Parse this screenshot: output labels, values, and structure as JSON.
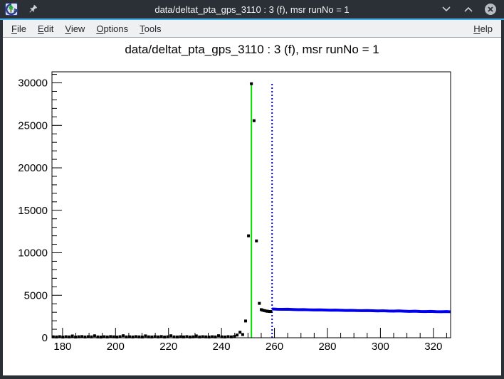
{
  "window": {
    "title": "data/deltat_pta_gps_3110 : 3 (f), msr runNo = 1",
    "icons": {
      "app": "root-app-icon",
      "pin": "pin-icon"
    },
    "buttons": {
      "minimize": "chevron-down-icon",
      "maximize": "chevron-up-icon",
      "close": "circle-close-icon"
    }
  },
  "menu": {
    "items": [
      "File",
      "Edit",
      "View",
      "Options",
      "Tools"
    ],
    "help": "Help"
  },
  "colors": {
    "titlebar_bg": "#2b3036",
    "titlebar_fg": "#fcfcfc",
    "accent": "#3daee9",
    "menubar_bg": "#eff0f1",
    "canvas_bg": "#ffffff",
    "data_marker": "#000000",
    "fit_line": "#0000ee",
    "t0_line": "#00e100"
  },
  "chart_data": {
    "type": "scatter",
    "title": "data/deltat_pta_gps_3110 : 3 (f), msr runNo = 1",
    "xlabel": "",
    "ylabel": "",
    "xlim": [
      176,
      326.5
    ],
    "ylim": [
      0,
      31300
    ],
    "grid": false,
    "x_major_ticks": [
      180,
      200,
      220,
      240,
      260,
      280,
      300,
      320
    ],
    "x_minor_step": 5,
    "y_major_ticks": [
      0,
      5000,
      10000,
      15000,
      20000,
      25000,
      30000
    ],
    "y_minor_step": 1000,
    "series": [
      {
        "name": "histogram-data",
        "type": "scatter",
        "marker": "square",
        "marker_size": 4,
        "color": "#000000",
        "points": [
          [
            176.5,
            110
          ],
          [
            177.7,
            95
          ],
          [
            178.9,
            130
          ],
          [
            180.1,
            85
          ],
          [
            181.3,
            120
          ],
          [
            182.5,
            100
          ],
          [
            183.7,
            210
          ],
          [
            184.9,
            90
          ],
          [
            186.1,
            115
          ],
          [
            187.3,
            140
          ],
          [
            188.5,
            95
          ],
          [
            189.7,
            125
          ],
          [
            190.9,
            105
          ],
          [
            192.1,
            230
          ],
          [
            193.3,
            100
          ],
          [
            194.5,
            85
          ],
          [
            195.7,
            120
          ],
          [
            196.9,
            95
          ],
          [
            198.1,
            135
          ],
          [
            199.3,
            110
          ],
          [
            200.5,
            90
          ],
          [
            201.7,
            125
          ],
          [
            202.9,
            240
          ],
          [
            204.1,
            100
          ],
          [
            205.3,
            115
          ],
          [
            206.5,
            95
          ],
          [
            207.7,
            130
          ],
          [
            208.9,
            105
          ],
          [
            210.1,
            90
          ],
          [
            211.3,
            220
          ],
          [
            212.5,
            110
          ],
          [
            213.7,
            95
          ],
          [
            214.9,
            125
          ],
          [
            216.1,
            100
          ],
          [
            217.3,
            140
          ],
          [
            218.5,
            90
          ],
          [
            219.7,
            115
          ],
          [
            220.9,
            235
          ],
          [
            222.1,
            105
          ],
          [
            223.3,
            95
          ],
          [
            224.5,
            120
          ],
          [
            225.7,
            100
          ],
          [
            226.9,
            130
          ],
          [
            228.1,
            90
          ],
          [
            229.3,
            110
          ],
          [
            230.5,
            215
          ],
          [
            231.7,
            95
          ],
          [
            232.9,
            125
          ],
          [
            234.1,
            105
          ],
          [
            235.3,
            90
          ],
          [
            236.5,
            120
          ],
          [
            237.7,
            100
          ],
          [
            238.9,
            240
          ],
          [
            240.1,
            110
          ],
          [
            241.3,
            95
          ],
          [
            242.5,
            130
          ],
          [
            243.7,
            105
          ],
          [
            244.9,
            150
          ],
          [
            245.9,
            320
          ],
          [
            247.0,
            650
          ],
          [
            248.0,
            380
          ],
          [
            249.1,
            1975
          ],
          [
            250.2,
            12000
          ],
          [
            251.3,
            29900
          ],
          [
            252.3,
            25550
          ],
          [
            253.2,
            11400
          ],
          [
            254.3,
            4050
          ],
          [
            255.0,
            3310
          ],
          [
            255.6,
            3240
          ],
          [
            256.2,
            3190
          ],
          [
            256.8,
            3150
          ],
          [
            257.4,
            3120
          ],
          [
            258.0,
            3100
          ],
          [
            258.6,
            3090
          ]
        ]
      },
      {
        "name": "fit-curve",
        "type": "line",
        "width": 4,
        "color": "#0000ee",
        "points": [
          [
            259.1,
            3390
          ],
          [
            261,
            3360
          ],
          [
            263,
            3345
          ],
          [
            265,
            3355
          ],
          [
            267,
            3325
          ],
          [
            269,
            3305
          ],
          [
            271,
            3315
          ],
          [
            273,
            3290
          ],
          [
            275,
            3270
          ],
          [
            277,
            3285
          ],
          [
            279,
            3260
          ],
          [
            281,
            3240
          ],
          [
            283,
            3255
          ],
          [
            285,
            3230
          ],
          [
            287,
            3210
          ],
          [
            289,
            3225
          ],
          [
            291,
            3200
          ],
          [
            293,
            3190
          ],
          [
            295,
            3205
          ],
          [
            297,
            3180
          ],
          [
            299,
            3160
          ],
          [
            301,
            3175
          ],
          [
            303,
            3150
          ],
          [
            305,
            3140
          ],
          [
            307,
            3155
          ],
          [
            309,
            3130
          ],
          [
            311,
            3110
          ],
          [
            313,
            3125
          ],
          [
            315,
            3100
          ],
          [
            317,
            3090
          ],
          [
            319,
            3105
          ],
          [
            321,
            3080
          ],
          [
            323,
            3070
          ],
          [
            325,
            3085
          ],
          [
            326.5,
            3060
          ]
        ]
      }
    ],
    "vlines": [
      {
        "name": "t0-line",
        "x": 251.3,
        "y0": 0,
        "y1": 29750,
        "color": "#00e100",
        "style": "solid",
        "width": 2
      },
      {
        "name": "fit-start-line",
        "x": 259.1,
        "y0": 0,
        "y1": 29900,
        "color": "#0000ee",
        "style": "dotted",
        "width": 2
      }
    ],
    "legend": null
  }
}
